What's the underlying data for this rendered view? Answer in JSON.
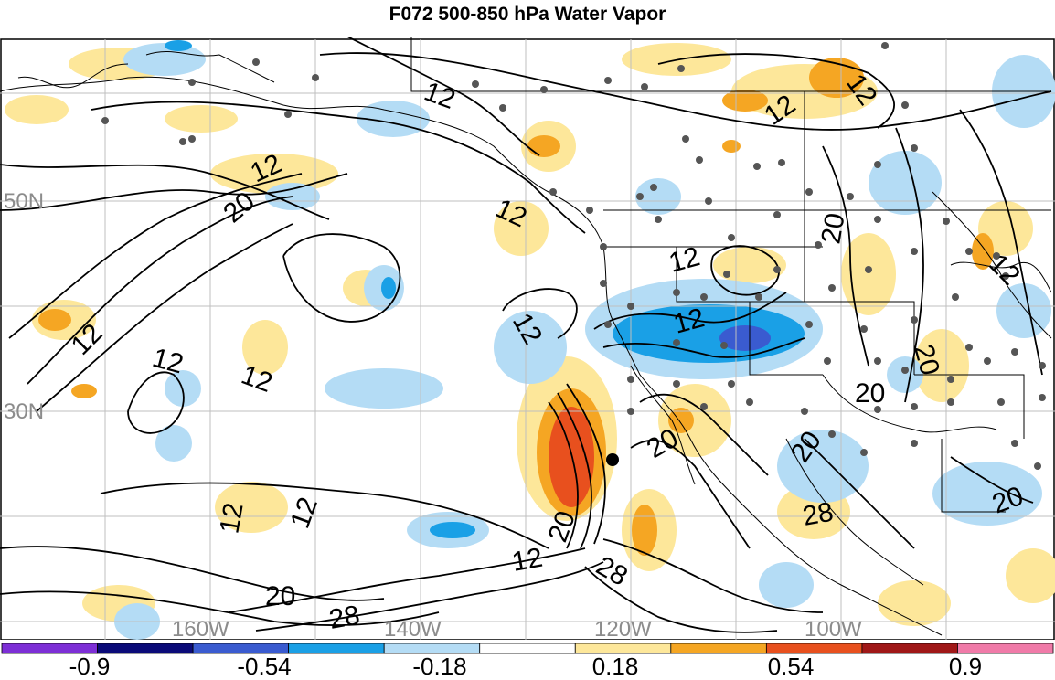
{
  "title": "F072 500-850 hPa Water Vapor",
  "colors": {
    "strong_positive": "#e8501e",
    "moderate_positive": "#f5a623",
    "weak_positive": "#fde79a",
    "weak_negative": "#b4dcf5",
    "moderate_negative": "#1aa0e6",
    "strong_negative": "#3a5bd0",
    "contour": "#000000",
    "station": "#555555",
    "grid": "#bfbfbf"
  },
  "lat_labels": [
    {
      "text": "50N"
    },
    {
      "text": "30N"
    }
  ],
  "lon_labels": [
    {
      "text": "160W"
    },
    {
      "text": "140W"
    },
    {
      "text": "120W"
    },
    {
      "text": "100W"
    }
  ],
  "contour_labels": [
    {
      "text": "12"
    },
    {
      "text": "12"
    },
    {
      "text": "12"
    },
    {
      "text": "12"
    },
    {
      "text": "20"
    },
    {
      "text": "12"
    },
    {
      "text": "12"
    },
    {
      "text": "12"
    },
    {
      "text": "12"
    },
    {
      "text": "12"
    },
    {
      "text": "12"
    },
    {
      "text": "20"
    },
    {
      "text": "12"
    },
    {
      "text": "12"
    },
    {
      "text": "12"
    },
    {
      "text": "20"
    },
    {
      "text": "28"
    },
    {
      "text": "20"
    },
    {
      "text": "28"
    },
    {
      "text": "20"
    },
    {
      "text": "20"
    },
    {
      "text": "20"
    },
    {
      "text": "28"
    },
    {
      "text": "20"
    },
    {
      "text": "20"
    }
  ],
  "colorbar": {
    "colors": [
      "#7d2fd6",
      "#0a0a78",
      "#3a5bd0",
      "#1aa0e6",
      "#b4dcf5",
      "#ffffff",
      "#fde79a",
      "#f5a623",
      "#e8501e",
      "#a01818",
      "#f07aa8"
    ],
    "labels": [
      "-0.9",
      "-0.54",
      "-0.18",
      "0.18",
      "0.54",
      "0.9"
    ]
  }
}
